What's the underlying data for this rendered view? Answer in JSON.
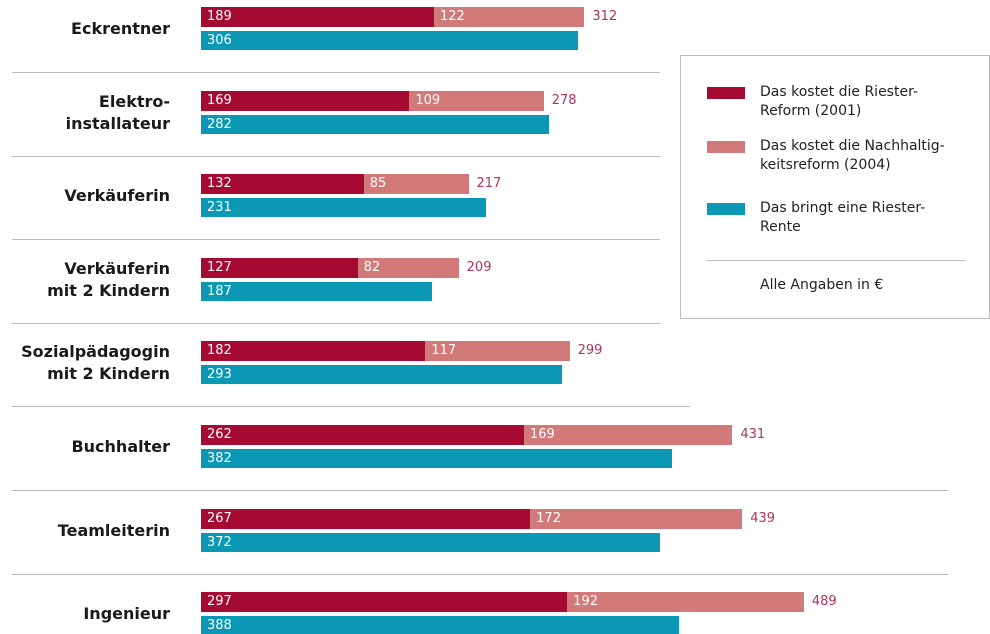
{
  "chart_data": {
    "type": "bar",
    "categories": [
      "Eckrentner",
      "Elektro-\ninstallateur",
      "Verkäuferin",
      "Verkäuferin\nmit 2 Kindern",
      "Sozialpädagogin\nmit 2 Kindern",
      "Buchhalter",
      "Teamleiterin",
      "Ingenieur"
    ],
    "series": [
      {
        "name": "Das kostet die Riester-\nReform (2001)",
        "color": "#a50a32",
        "values": [
          189,
          169,
          132,
          127,
          182,
          262,
          267,
          297
        ]
      },
      {
        "name": "Das kostet die Nachhaltig-\nkeitsreform (2004)",
        "color": "#d27a7a",
        "values": [
          122,
          109,
          85,
          82,
          117,
          169,
          172,
          192
        ]
      },
      {
        "name": "Das bringt eine Riester-\nRente",
        "color": "#0a98b5",
        "values": [
          306,
          282,
          231,
          187,
          293,
          382,
          372,
          388
        ]
      }
    ],
    "totals": [
      312,
      278,
      217,
      209,
      299,
      431,
      439,
      489
    ],
    "unit_note": "Alle Angaben in €",
    "xlim": [
      0,
      640
    ]
  }
}
